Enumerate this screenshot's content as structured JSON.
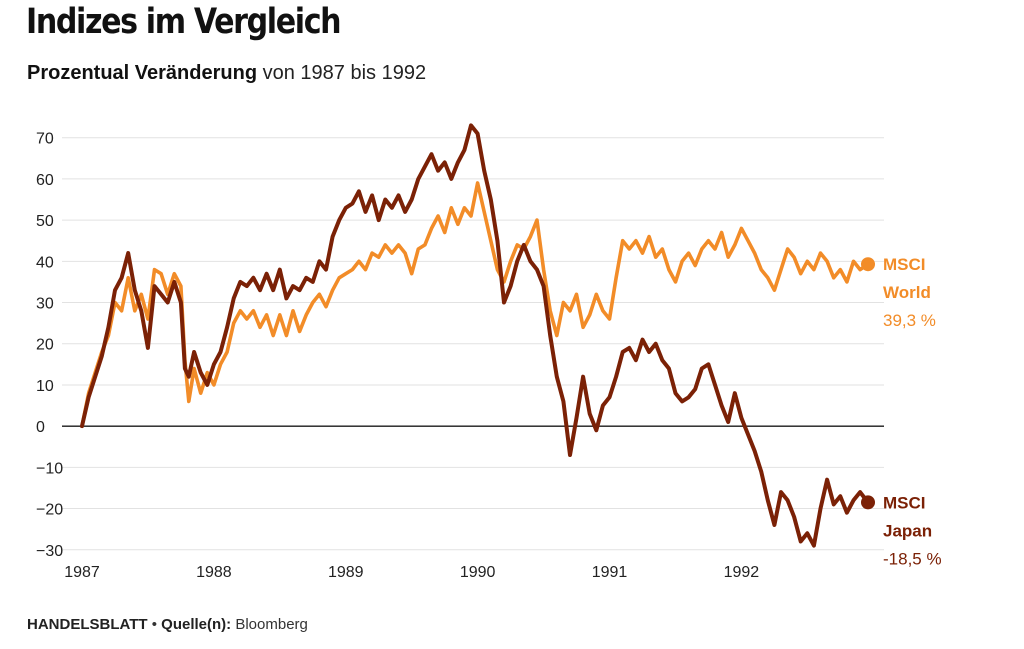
{
  "header": {
    "title": "Indizes im Vergleich",
    "subtitle_bold": "Prozentual Veränderung",
    "subtitle_rest": "von 1987 bis 1992"
  },
  "footer": {
    "brand": "HANDELSBLATT",
    "separator": "•",
    "source_label": "Quelle(n):",
    "source": "Bloomberg"
  },
  "colors": {
    "world": "#f28c28",
    "japan": "#7b2106",
    "grid": "#e2e2e2",
    "zero": "#1a1a1a"
  },
  "chart_data": {
    "type": "line",
    "ylim": [
      -32,
      76
    ],
    "yticks": [
      70,
      60,
      50,
      40,
      30,
      20,
      10,
      0,
      -10,
      -20,
      -30
    ],
    "xlim": [
      1987.0,
      1992.96
    ],
    "xticks": [
      "1987",
      "1988",
      "1989",
      "1990",
      "1991",
      "1992"
    ],
    "grid": true,
    "series": [
      {
        "name_line1": "MSCI",
        "name_line2": "World",
        "end_label": "39,3 %",
        "color": "#f28c28",
        "points": [
          [
            1987.0,
            0
          ],
          [
            1987.05,
            8
          ],
          [
            1987.1,
            13
          ],
          [
            1987.15,
            18
          ],
          [
            1987.2,
            22
          ],
          [
            1987.25,
            30
          ],
          [
            1987.3,
            28
          ],
          [
            1987.35,
            36
          ],
          [
            1987.4,
            28
          ],
          [
            1987.45,
            32
          ],
          [
            1987.5,
            26
          ],
          [
            1987.55,
            38
          ],
          [
            1987.6,
            37
          ],
          [
            1987.65,
            32
          ],
          [
            1987.7,
            37
          ],
          [
            1987.75,
            34
          ],
          [
            1987.78,
            16
          ],
          [
            1987.81,
            6
          ],
          [
            1987.85,
            14
          ],
          [
            1987.9,
            8
          ],
          [
            1987.95,
            13
          ],
          [
            1988.0,
            10
          ],
          [
            1988.05,
            15
          ],
          [
            1988.1,
            18
          ],
          [
            1988.15,
            25
          ],
          [
            1988.2,
            28
          ],
          [
            1988.25,
            26
          ],
          [
            1988.3,
            28
          ],
          [
            1988.35,
            24
          ],
          [
            1988.4,
            27
          ],
          [
            1988.45,
            22
          ],
          [
            1988.5,
            27
          ],
          [
            1988.55,
            22
          ],
          [
            1988.6,
            28
          ],
          [
            1988.65,
            23
          ],
          [
            1988.7,
            27
          ],
          [
            1988.75,
            30
          ],
          [
            1988.8,
            32
          ],
          [
            1988.85,
            29
          ],
          [
            1988.9,
            33
          ],
          [
            1988.95,
            36
          ],
          [
            1989.0,
            37
          ],
          [
            1989.05,
            38
          ],
          [
            1989.1,
            40
          ],
          [
            1989.15,
            38
          ],
          [
            1989.2,
            42
          ],
          [
            1989.25,
            41
          ],
          [
            1989.3,
            44
          ],
          [
            1989.35,
            42
          ],
          [
            1989.4,
            44
          ],
          [
            1989.45,
            42
          ],
          [
            1989.5,
            37
          ],
          [
            1989.55,
            43
          ],
          [
            1989.6,
            44
          ],
          [
            1989.65,
            48
          ],
          [
            1989.7,
            51
          ],
          [
            1989.75,
            47
          ],
          [
            1989.8,
            53
          ],
          [
            1989.85,
            49
          ],
          [
            1989.9,
            53
          ],
          [
            1989.95,
            51
          ],
          [
            1990.0,
            59
          ],
          [
            1990.05,
            52
          ],
          [
            1990.1,
            45
          ],
          [
            1990.15,
            38
          ],
          [
            1990.2,
            35
          ],
          [
            1990.25,
            40
          ],
          [
            1990.3,
            44
          ],
          [
            1990.35,
            43
          ],
          [
            1990.4,
            46
          ],
          [
            1990.45,
            50
          ],
          [
            1990.5,
            38
          ],
          [
            1990.55,
            28
          ],
          [
            1990.6,
            22
          ],
          [
            1990.65,
            30
          ],
          [
            1990.7,
            28
          ],
          [
            1990.75,
            32
          ],
          [
            1990.8,
            24
          ],
          [
            1990.85,
            27
          ],
          [
            1990.9,
            32
          ],
          [
            1990.95,
            28
          ],
          [
            1991.0,
            26
          ],
          [
            1991.05,
            36
          ],
          [
            1991.1,
            45
          ],
          [
            1991.15,
            43
          ],
          [
            1991.2,
            45
          ],
          [
            1991.25,
            42
          ],
          [
            1991.3,
            46
          ],
          [
            1991.35,
            41
          ],
          [
            1991.4,
            43
          ],
          [
            1991.45,
            38
          ],
          [
            1991.5,
            35
          ],
          [
            1991.55,
            40
          ],
          [
            1991.6,
            42
          ],
          [
            1991.65,
            39
          ],
          [
            1991.7,
            43
          ],
          [
            1991.75,
            45
          ],
          [
            1991.8,
            43
          ],
          [
            1991.85,
            47
          ],
          [
            1991.9,
            41
          ],
          [
            1991.95,
            44
          ],
          [
            1992.0,
            48
          ],
          [
            1992.05,
            45
          ],
          [
            1992.1,
            42
          ],
          [
            1992.15,
            38
          ],
          [
            1992.2,
            36
          ],
          [
            1992.25,
            33
          ],
          [
            1992.3,
            38
          ],
          [
            1992.35,
            43
          ],
          [
            1992.4,
            41
          ],
          [
            1992.45,
            37
          ],
          [
            1992.5,
            40
          ],
          [
            1992.55,
            38
          ],
          [
            1992.6,
            42
          ],
          [
            1992.65,
            40
          ],
          [
            1992.7,
            36
          ],
          [
            1992.75,
            38
          ],
          [
            1992.8,
            35
          ],
          [
            1992.85,
            40
          ],
          [
            1992.9,
            38
          ],
          [
            1992.96,
            39.3
          ]
        ]
      },
      {
        "name_line1": "MSCI",
        "name_line2": "Japan",
        "end_label": "-18,5 %",
        "color": "#7b2106",
        "points": [
          [
            1987.0,
            0
          ],
          [
            1987.05,
            7
          ],
          [
            1987.1,
            12
          ],
          [
            1987.15,
            17
          ],
          [
            1987.2,
            24
          ],
          [
            1987.25,
            33
          ],
          [
            1987.3,
            36
          ],
          [
            1987.35,
            42
          ],
          [
            1987.4,
            33
          ],
          [
            1987.45,
            28
          ],
          [
            1987.5,
            19
          ],
          [
            1987.55,
            34
          ],
          [
            1987.6,
            32
          ],
          [
            1987.65,
            30
          ],
          [
            1987.7,
            35
          ],
          [
            1987.75,
            30
          ],
          [
            1987.78,
            14
          ],
          [
            1987.81,
            12
          ],
          [
            1987.85,
            18
          ],
          [
            1987.9,
            13
          ],
          [
            1987.95,
            10
          ],
          [
            1988.0,
            15
          ],
          [
            1988.05,
            18
          ],
          [
            1988.1,
            24
          ],
          [
            1988.15,
            31
          ],
          [
            1988.2,
            35
          ],
          [
            1988.25,
            34
          ],
          [
            1988.3,
            36
          ],
          [
            1988.35,
            33
          ],
          [
            1988.4,
            37
          ],
          [
            1988.45,
            33
          ],
          [
            1988.5,
            38
          ],
          [
            1988.55,
            31
          ],
          [
            1988.6,
            34
          ],
          [
            1988.65,
            33
          ],
          [
            1988.7,
            36
          ],
          [
            1988.75,
            35
          ],
          [
            1988.8,
            40
          ],
          [
            1988.85,
            38
          ],
          [
            1988.9,
            46
          ],
          [
            1988.95,
            50
          ],
          [
            1989.0,
            53
          ],
          [
            1989.05,
            54
          ],
          [
            1989.1,
            57
          ],
          [
            1989.15,
            52
          ],
          [
            1989.2,
            56
          ],
          [
            1989.25,
            50
          ],
          [
            1989.3,
            55
          ],
          [
            1989.35,
            53
          ],
          [
            1989.4,
            56
          ],
          [
            1989.45,
            52
          ],
          [
            1989.5,
            55
          ],
          [
            1989.55,
            60
          ],
          [
            1989.6,
            63
          ],
          [
            1989.65,
            66
          ],
          [
            1989.7,
            62
          ],
          [
            1989.75,
            64
          ],
          [
            1989.8,
            60
          ],
          [
            1989.85,
            64
          ],
          [
            1989.9,
            67
          ],
          [
            1989.95,
            73
          ],
          [
            1990.0,
            71
          ],
          [
            1990.05,
            62
          ],
          [
            1990.1,
            55
          ],
          [
            1990.15,
            45
          ],
          [
            1990.2,
            30
          ],
          [
            1990.25,
            34
          ],
          [
            1990.3,
            40
          ],
          [
            1990.35,
            44
          ],
          [
            1990.4,
            40
          ],
          [
            1990.45,
            38
          ],
          [
            1990.5,
            34
          ],
          [
            1990.55,
            22
          ],
          [
            1990.6,
            12
          ],
          [
            1990.65,
            6
          ],
          [
            1990.7,
            -7
          ],
          [
            1990.75,
            2
          ],
          [
            1990.8,
            12
          ],
          [
            1990.85,
            3
          ],
          [
            1990.9,
            -1
          ],
          [
            1990.95,
            5
          ],
          [
            1991.0,
            7
          ],
          [
            1991.05,
            12
          ],
          [
            1991.1,
            18
          ],
          [
            1991.15,
            19
          ],
          [
            1991.2,
            16
          ],
          [
            1991.25,
            21
          ],
          [
            1991.3,
            18
          ],
          [
            1991.35,
            20
          ],
          [
            1991.4,
            16
          ],
          [
            1991.45,
            14
          ],
          [
            1991.5,
            8
          ],
          [
            1991.55,
            6
          ],
          [
            1991.6,
            7
          ],
          [
            1991.65,
            9
          ],
          [
            1991.7,
            14
          ],
          [
            1991.75,
            15
          ],
          [
            1991.8,
            10
          ],
          [
            1991.85,
            5
          ],
          [
            1991.9,
            1
          ],
          [
            1991.95,
            8
          ],
          [
            1992.0,
            2
          ],
          [
            1992.05,
            -2
          ],
          [
            1992.1,
            -6
          ],
          [
            1992.15,
            -11
          ],
          [
            1992.2,
            -18
          ],
          [
            1992.25,
            -24
          ],
          [
            1992.3,
            -16
          ],
          [
            1992.35,
            -18
          ],
          [
            1992.4,
            -22
          ],
          [
            1992.45,
            -28
          ],
          [
            1992.5,
            -26
          ],
          [
            1992.55,
            -29
          ],
          [
            1992.6,
            -20
          ],
          [
            1992.65,
            -13
          ],
          [
            1992.7,
            -19
          ],
          [
            1992.75,
            -17
          ],
          [
            1992.8,
            -21
          ],
          [
            1992.85,
            -18
          ],
          [
            1992.9,
            -16
          ],
          [
            1992.96,
            -18.5
          ]
        ]
      }
    ]
  }
}
